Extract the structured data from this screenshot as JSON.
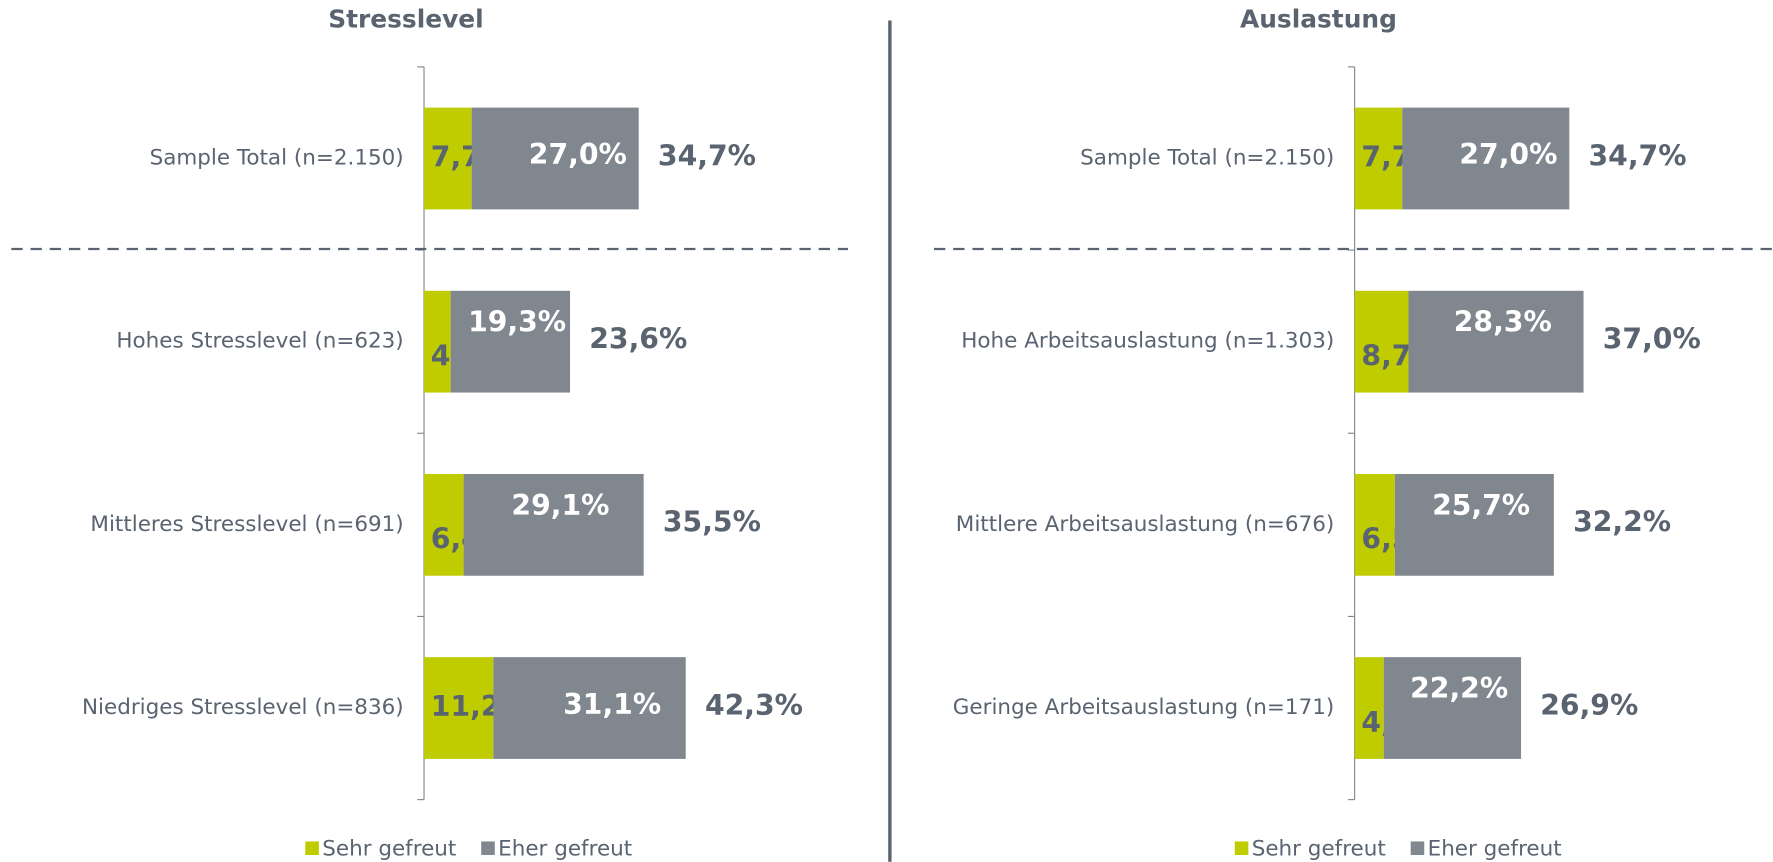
{
  "chart_data": [
    {
      "type": "stacked-barh",
      "title": "Stresslevel",
      "categories": [
        "Sample Total (n=2.150)",
        "Hohes Stresslevel (n=623)",
        "Mittleres Stresslevel (n=691)",
        "Niedriges Stresslevel (n=836)"
      ],
      "series": [
        {
          "name": "Sehr gefreut",
          "color": "#bfcc00",
          "values": [
            7.7,
            4.3,
            6.4,
            11.2
          ],
          "value_labels": [
            "7,7%",
            "4,3%",
            "6,4%",
            "11,2%"
          ]
        },
        {
          "name": "Eher gefreut",
          "color": "#80878f",
          "values": [
            27.0,
            19.3,
            29.1,
            31.1
          ],
          "value_labels": [
            "27,0%",
            "19,3%",
            "29,1%",
            "31,1%"
          ]
        }
      ],
      "totals": {
        "values": [
          34.7,
          23.6,
          35.5,
          42.3
        ],
        "value_labels": [
          "34,7%",
          "23,6%",
          "35,5%",
          "42,3%"
        ]
      },
      "xlim": [
        0,
        70
      ]
    },
    {
      "type": "stacked-barh",
      "title": "Auslastung",
      "categories": [
        "Sample Total (n=2.150)",
        "Hohe Arbeitsauslastung (n=1.303)",
        "Mittlere Arbeitsauslastung (n=676)",
        "Geringe Arbeitsauslastung (n=171)"
      ],
      "series": [
        {
          "name": "Sehr gefreut",
          "color": "#bfcc00",
          "values": [
            7.7,
            8.7,
            6.5,
            4.7
          ],
          "value_labels": [
            "7,7%",
            "8,7%",
            "6,5%",
            "4,7%"
          ]
        },
        {
          "name": "Eher gefreut",
          "color": "#80878f",
          "values": [
            27.0,
            28.3,
            25.7,
            22.2
          ],
          "value_labels": [
            "27,0%",
            "28,3%",
            "25,7%",
            "22,2%"
          ]
        }
      ],
      "totals": {
        "values": [
          34.7,
          37.0,
          32.2,
          26.9
        ],
        "value_labels": [
          "34,7%",
          "37,0%",
          "32,2%",
          "26,9%"
        ]
      },
      "xlim": [
        0,
        70
      ]
    }
  ]
}
